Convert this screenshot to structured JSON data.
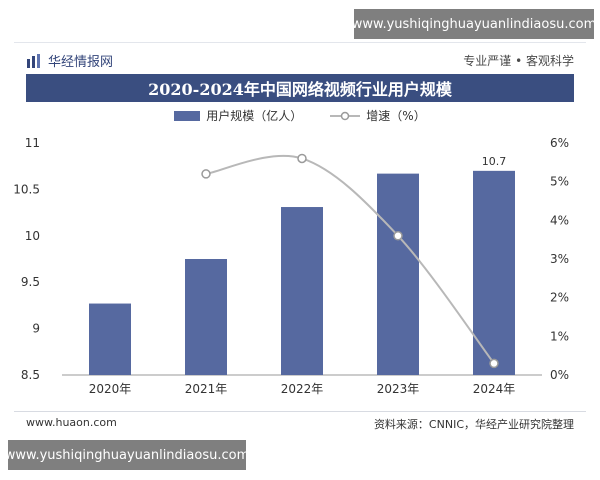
{
  "watermark_top": "www.yushiqinghuayuanlindiaosu.com",
  "watermark_bottom": "www.yushiqinghuayuanlindiaosu.com",
  "brand": "华经情报网",
  "slogan": "专业严谨 • 客观科学",
  "footer": {
    "website": "www.huaon.com",
    "source": "资料来源：CNNIC，华经产业研究院整理"
  },
  "colors": {
    "bar": "#5669a0",
    "line": "#b8b8b8",
    "title_bar": "#3a4e80"
  },
  "chart_data": {
    "type": "bar",
    "title": "2020-2024年中国网络视频行业用户规模",
    "categories": [
      "2020年",
      "2021年",
      "2022年",
      "2023年",
      "2024年"
    ],
    "series": [
      {
        "name": "用户规模（亿人）",
        "type": "bar",
        "axis": "left",
        "values": [
          9.27,
          9.75,
          10.31,
          10.67,
          10.7
        ]
      },
      {
        "name": "增速（%）",
        "type": "line",
        "axis": "right",
        "values": [
          null,
          5.2,
          5.6,
          3.6,
          0.3
        ]
      }
    ],
    "data_labels": [
      {
        "category": "2024年",
        "text": "10.7"
      }
    ],
    "y_left": {
      "min": 8.5,
      "max": 11,
      "ticks": [
        "8.5",
        "9",
        "9.5",
        "10",
        "10.5",
        "11"
      ]
    },
    "y_right": {
      "min": 0,
      "max": 6,
      "ticks": [
        "0%",
        "1%",
        "2%",
        "3%",
        "4%",
        "5%",
        "6%"
      ]
    },
    "legend": "top-center",
    "grid": false
  }
}
